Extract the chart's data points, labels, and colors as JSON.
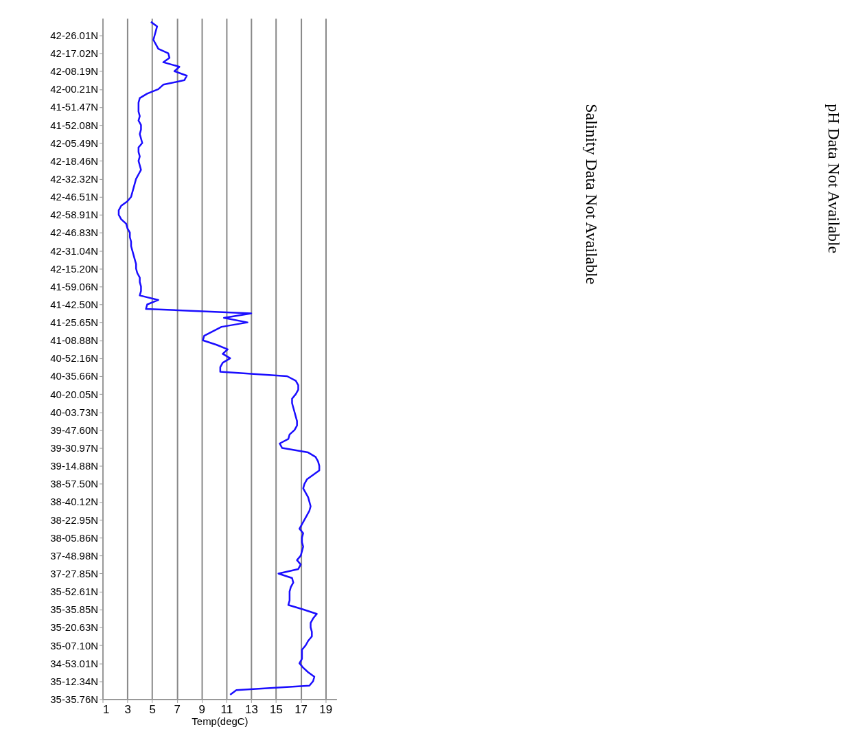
{
  "chart_data": {
    "type": "line",
    "orientation": "horizontal",
    "xlabel": "Temp(degC)",
    "xlim": [
      1,
      19.9
    ],
    "xticks": [
      1,
      3,
      5,
      7,
      9,
      11,
      13,
      15,
      17,
      19
    ],
    "categories": [
      null,
      null,
      null,
      "42-26.01N",
      null,
      null,
      null,
      "42-17.02N",
      null,
      null,
      null,
      "42-08.19N",
      null,
      null,
      null,
      "42-00.21N",
      null,
      null,
      null,
      "41-51.47N",
      null,
      null,
      null,
      "41-52.08N",
      null,
      null,
      null,
      "42-05.49N",
      null,
      null,
      null,
      "42-18.46N",
      null,
      null,
      null,
      "42-32.32N",
      null,
      null,
      null,
      "42-46.51N",
      null,
      null,
      null,
      "42-58.91N",
      null,
      null,
      null,
      "42-46.83N",
      null,
      null,
      null,
      "42-31.04N",
      null,
      null,
      null,
      "42-15.20N",
      null,
      null,
      null,
      "41-59.06N",
      null,
      null,
      null,
      "41-42.50N",
      null,
      null,
      null,
      "41-25.65N",
      null,
      null,
      null,
      "41-08.88N",
      null,
      null,
      null,
      "40-52.16N",
      null,
      null,
      null,
      "40-35.66N",
      null,
      null,
      null,
      "40-20.05N",
      null,
      null,
      null,
      "40-03.73N",
      null,
      null,
      null,
      "39-47.60N",
      null,
      null,
      null,
      "39-30.97N",
      null,
      null,
      null,
      "39-14.88N",
      null,
      null,
      null,
      "38-57.50N",
      null,
      null,
      null,
      "38-40.12N",
      null,
      null,
      null,
      "38-22.95N",
      null,
      null,
      null,
      "38-05.86N",
      null,
      null,
      null,
      "37-48.98N",
      null,
      null,
      null,
      "37-27.85N",
      null,
      null,
      null,
      "35-52.61N",
      null,
      null,
      null,
      "35-35.85N",
      null,
      null,
      null,
      "35-20.63N",
      null,
      null,
      null,
      "35-07.10N",
      null,
      null,
      null,
      "34-53.01N",
      null,
      null,
      null,
      "35-12.34N",
      null,
      null,
      null,
      "35-35.76N"
    ],
    "grid": "x",
    "marker": "none",
    "line_style": "solid",
    "series": [
      {
        "color": "#1a0dff",
        "values": [
          4.9,
          5.4,
          5.3,
          5.2,
          5.1,
          5.3,
          5.5,
          6.3,
          6.4,
          5.9,
          7.2,
          6.8,
          7.8,
          7.6,
          5.9,
          5.5,
          4.6,
          4.0,
          3.9,
          3.9,
          3.9,
          4.0,
          3.9,
          4.1,
          4.1,
          4.0,
          4.1,
          4.2,
          3.9,
          3.9,
          4.0,
          3.9,
          4.0,
          4.1,
          3.9,
          3.7,
          3.6,
          3.5,
          3.4,
          3.3,
          3.0,
          2.5,
          2.3,
          2.3,
          2.5,
          2.9,
          3.0,
          3.2,
          3.2,
          3.3,
          3.3,
          3.4,
          3.5,
          3.6,
          3.7,
          3.7,
          3.8,
          4.0,
          4.0,
          4.1,
          4.1,
          4.0,
          5.5,
          4.6,
          4.5,
          13.0,
          10.8,
          12.7,
          10.6,
          9.9,
          9.2,
          9.1,
          10.2,
          11.1,
          10.7,
          11.3,
          10.7,
          10.5,
          10.5,
          15.9,
          16.6,
          16.8,
          16.8,
          16.6,
          16.3,
          16.3,
          16.4,
          16.5,
          16.6,
          16.7,
          16.7,
          16.5,
          16.1,
          16.0,
          15.3,
          15.5,
          17.6,
          18.2,
          18.4,
          18.5,
          18.5,
          18.0,
          17.5,
          17.3,
          17.2,
          17.4,
          17.6,
          17.7,
          17.8,
          17.7,
          17.5,
          17.3,
          17.1,
          16.9,
          17.2,
          17.1,
          17.1,
          17.2,
          17.1,
          17.0,
          16.7,
          17.0,
          16.8,
          15.2,
          16.3,
          16.4,
          16.2,
          16.1,
          16.1,
          16.1,
          16.0,
          17.2,
          18.3,
          18.0,
          17.8,
          17.8,
          17.9,
          17.9,
          17.6,
          17.4,
          17.1,
          17.1,
          17.1,
          16.9,
          17.2,
          17.6,
          18.1,
          18.0,
          17.7,
          11.8,
          11.3,
          null
        ]
      }
    ],
    "annotations": [
      "Salinity Data Not Available",
      "pH Data Not Available"
    ]
  }
}
